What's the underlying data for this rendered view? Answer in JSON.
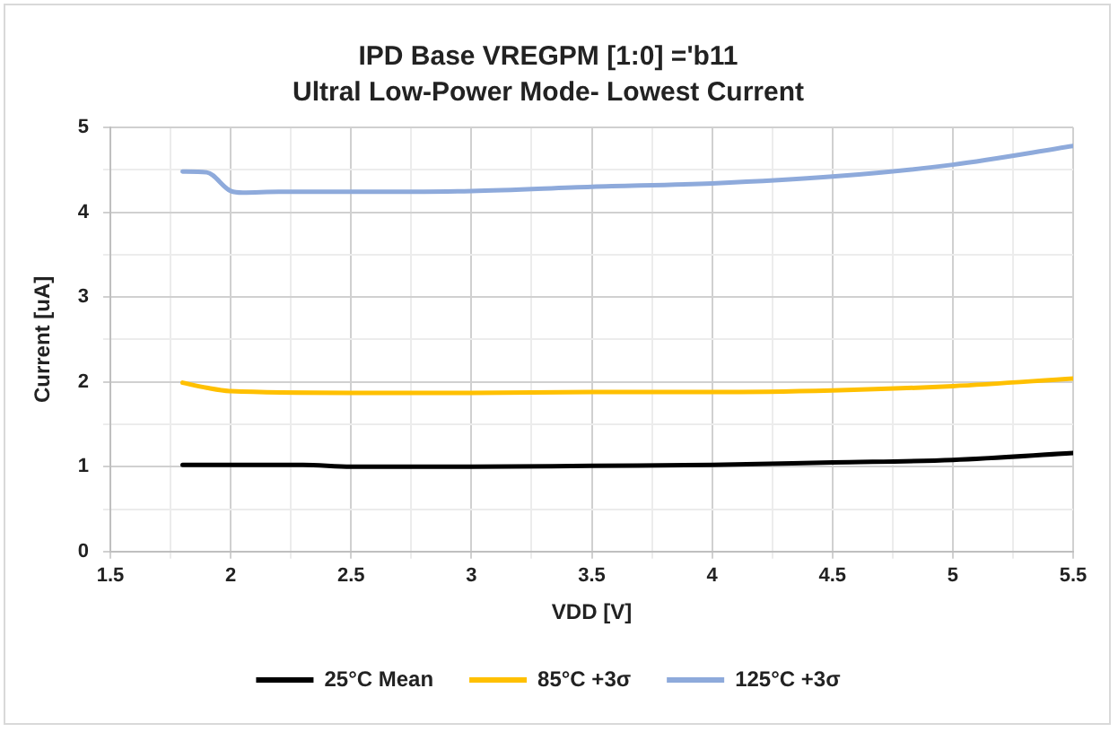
{
  "chart_data": {
    "type": "line",
    "title": "IPD Base VREGPM [1:0] ='b11",
    "subtitle": "Ultral Low-Power Mode- Lowest Current",
    "xlabel": "VDD [V]",
    "ylabel": "Current [uA]",
    "xlim": [
      1.5,
      5.5
    ],
    "xticks": [
      1.5,
      {
        "value": 1.75,
        "label": null
      },
      2,
      {
        "value": 2.25,
        "label": null
      },
      2.5,
      {
        "value": 2.75,
        "label": null
      },
      3,
      {
        "value": 3.25,
        "label": null
      },
      3.5,
      {
        "value": 3.75,
        "label": null
      },
      4,
      {
        "value": 4.25,
        "label": null
      },
      4.5,
      {
        "value": 4.75,
        "label": null
      },
      5,
      {
        "value": 5.25,
        "label": null
      },
      5.5
    ],
    "ylim": [
      0,
      5
    ],
    "yticks": [
      0,
      {
        "value": 0.5,
        "label": null
      },
      1,
      {
        "value": 1.5,
        "label": null
      },
      2,
      {
        "value": 2.5,
        "label": null
      },
      3,
      {
        "value": 3.5,
        "label": null
      },
      4,
      {
        "value": 4.5,
        "label": null
      },
      5
    ],
    "grid": true,
    "legend": "bottom",
    "marker": "none",
    "line_style": "solid",
    "series": [
      {
        "name": "25°C Mean",
        "color": "#000000",
        "x": [
          1.8,
          2.0,
          2.3,
          2.5,
          3.0,
          3.5,
          4.0,
          4.5,
          5.0,
          5.5
        ],
        "values": [
          1.02,
          1.02,
          1.02,
          1.0,
          1.0,
          1.01,
          1.02,
          1.05,
          1.08,
          1.16
        ]
      },
      {
        "name": "85°C +3σ",
        "color": "#ffc000",
        "x": [
          1.8,
          1.9,
          2.0,
          2.5,
          3.0,
          3.5,
          4.0,
          4.5,
          5.0,
          5.5
        ],
        "values": [
          1.99,
          1.93,
          1.89,
          1.87,
          1.87,
          1.88,
          1.88,
          1.9,
          1.95,
          2.04
        ]
      },
      {
        "name": "125°C +3σ",
        "color": "#8eaadb",
        "x": [
          1.8,
          1.9,
          2.0,
          2.05,
          2.2,
          2.5,
          3.0,
          3.5,
          4.0,
          4.5,
          5.0,
          5.5
        ],
        "values": [
          4.48,
          4.47,
          4.25,
          4.23,
          4.24,
          4.24,
          4.25,
          4.3,
          4.34,
          4.42,
          4.56,
          4.78
        ]
      }
    ]
  }
}
